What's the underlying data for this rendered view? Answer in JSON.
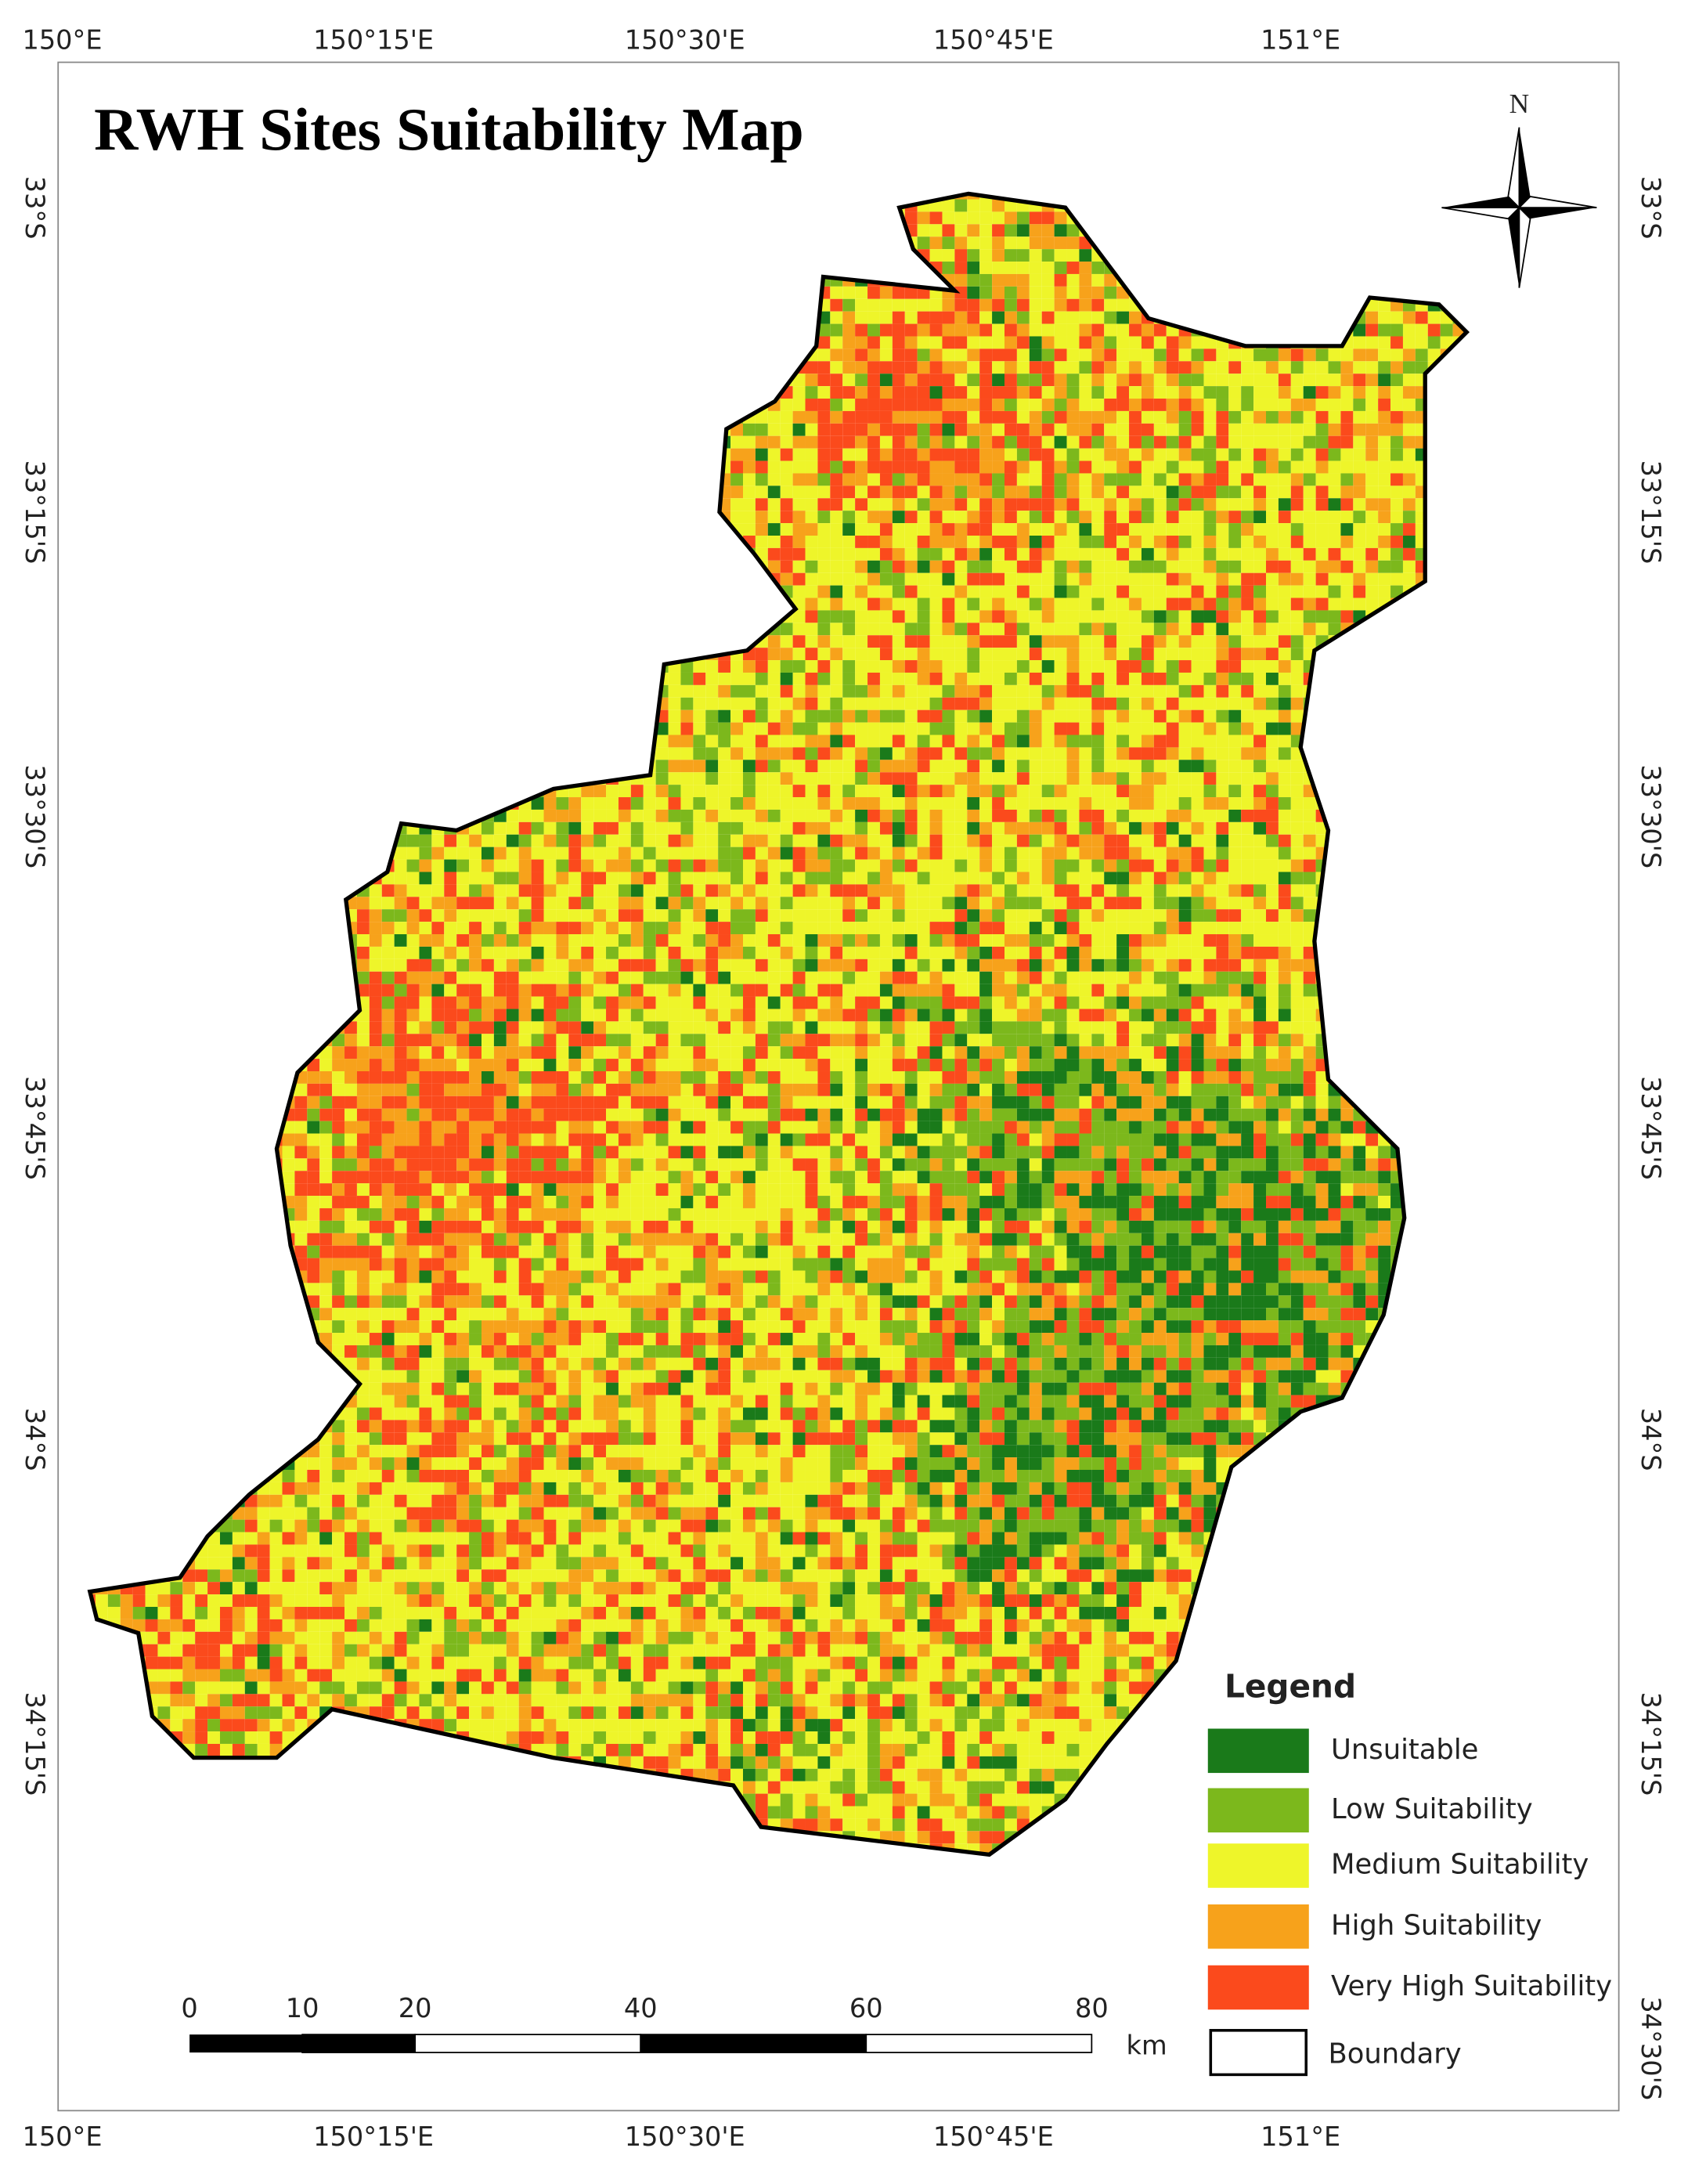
{
  "title": "RWH Sites Suitability Map",
  "north": "N",
  "graticule": {
    "top": [
      "150°E",
      "150°15'E",
      "150°30'E",
      "150°45'E",
      "151°E"
    ],
    "bottom": [
      "150°E",
      "150°15'E",
      "150°30'E",
      "150°45'E",
      "151°E"
    ],
    "left": [
      "33°S",
      "33°15'S",
      "33°30'S",
      "33°45'S",
      "34°S",
      "34°15'S"
    ],
    "right": [
      "33°S",
      "33°15'S",
      "33°30'S",
      "33°45'S",
      "34°S",
      "34°15'S",
      "34°30'S"
    ]
  },
  "legend": {
    "title": "Legend",
    "items": [
      {
        "label": "Unsuitable",
        "color": "#1a7a1a"
      },
      {
        "label": "Low Suitability",
        "color": "#7cb81c"
      },
      {
        "label": "Medium Suitability",
        "color": "#eef52a"
      },
      {
        "label": "High Suitability",
        "color": "#f7a21b"
      },
      {
        "label": "Very High Suitability",
        "color": "#fb4a1c"
      }
    ],
    "boundary": "Boundary"
  },
  "scale_bar": {
    "labels": [
      0,
      10,
      20,
      40,
      60,
      80
    ],
    "unit": "km"
  }
}
